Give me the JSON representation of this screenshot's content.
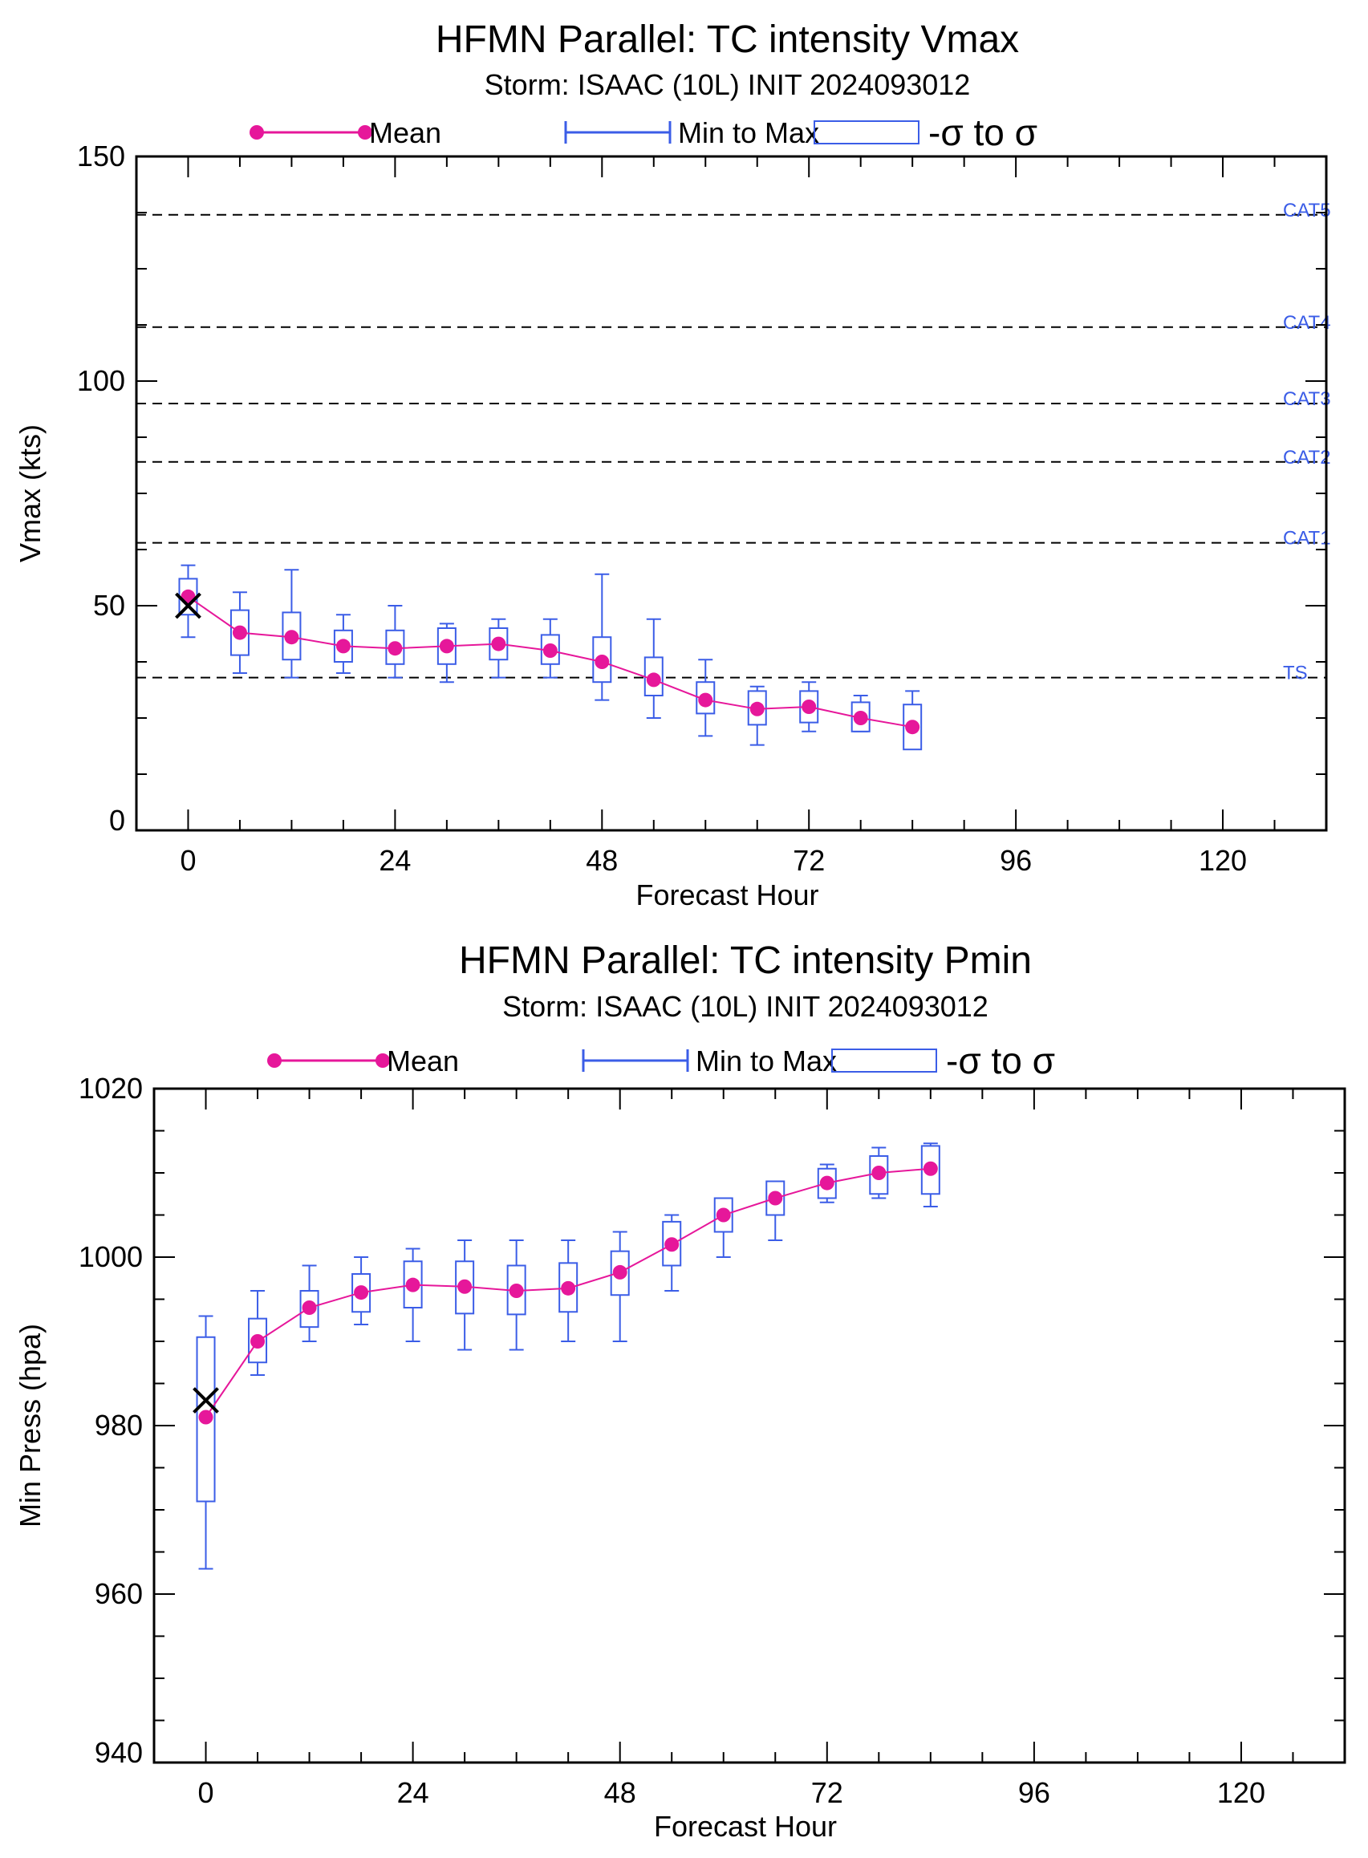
{
  "chart_data": [
    {
      "type": "box",
      "title": "HFMN Parallel: TC intensity Vmax",
      "subtitle": "Storm: ISAAC (10L) INIT 2024093012",
      "xlabel": "Forecast Hour",
      "ylabel": "Vmax (kts)",
      "xlim": [
        -6,
        132
      ],
      "ylim": [
        0,
        150
      ],
      "xticks": [
        0,
        24,
        48,
        72,
        96,
        120
      ],
      "yticks": [
        0,
        50,
        100,
        150
      ],
      "legend": {
        "position": "top",
        "mean": "Mean",
        "range": "Min to Max",
        "box": "-σ to σ"
      },
      "colors": {
        "mean": "#e6179a",
        "box": "#3b5de7",
        "threshold": "#000000",
        "threshold_label": "#3b5de7",
        "observed": "#000000"
      },
      "thresholds": [
        {
          "label": "TS",
          "value": 34
        },
        {
          "label": "CAT1",
          "value": 64
        },
        {
          "label": "CAT2",
          "value": 82
        },
        {
          "label": "CAT3",
          "value": 95
        },
        {
          "label": "CAT4",
          "value": 112
        },
        {
          "label": "CAT5",
          "value": 137
        }
      ],
      "observed": {
        "x": 0,
        "y": 50
      },
      "series": [
        {
          "name": "Mean",
          "x": [
            0,
            6,
            12,
            18,
            24,
            30,
            36,
            42,
            48,
            54,
            60,
            66,
            72,
            78,
            84
          ],
          "mean": [
            52,
            44,
            43,
            41,
            40.5,
            41,
            41.5,
            40,
            37.5,
            33.5,
            29,
            27,
            27.5,
            25,
            23
          ],
          "min": [
            43,
            35,
            34,
            35,
            34,
            33,
            34,
            34,
            29,
            25,
            21,
            19,
            22,
            22,
            19
          ],
          "max": [
            59,
            53,
            58,
            48,
            50,
            46,
            47,
            47,
            57,
            47,
            38,
            32,
            33,
            30,
            31
          ],
          "lo": [
            48,
            39,
            38,
            37.5,
            37,
            37,
            38,
            37,
            33,
            30,
            26,
            23.5,
            24,
            22,
            18
          ],
          "hi": [
            56,
            49,
            48.5,
            44.5,
            44.5,
            45,
            45,
            43.5,
            43,
            38.5,
            33,
            31,
            31,
            28.5,
            28
          ]
        }
      ]
    },
    {
      "type": "box",
      "title": "HFMN Parallel: TC intensity Pmin",
      "subtitle": "Storm: ISAAC (10L) INIT 2024093012",
      "xlabel": "Forecast Hour",
      "ylabel": "Min Press (hpa)",
      "xlim": [
        -6,
        132
      ],
      "ylim": [
        940,
        1020
      ],
      "xticks": [
        0,
        24,
        48,
        72,
        96,
        120
      ],
      "yticks": [
        940,
        960,
        980,
        1000,
        1020
      ],
      "legend": {
        "position": "top",
        "mean": "Mean",
        "range": "Min to Max",
        "box": "-σ to σ"
      },
      "colors": {
        "mean": "#e6179a",
        "box": "#3b5de7",
        "observed": "#000000"
      },
      "thresholds": [],
      "observed": {
        "x": 0,
        "y": 983
      },
      "series": [
        {
          "name": "Mean",
          "x": [
            0,
            6,
            12,
            18,
            24,
            30,
            36,
            42,
            48,
            54,
            60,
            66,
            72,
            78,
            84
          ],
          "mean": [
            981,
            990,
            994,
            995.8,
            996.7,
            996.5,
            996,
            996.3,
            998.2,
            1001.5,
            1005,
            1007,
            1008.8,
            1010,
            1010.5
          ],
          "min": [
            963,
            986,
            990,
            992,
            990,
            989,
            989,
            990,
            990,
            996,
            1000,
            1002,
            1006.5,
            1007,
            1006
          ],
          "max": [
            993,
            996,
            999,
            1000,
            1001,
            1002,
            1002,
            1002,
            1003,
            1005,
            1007,
            1009,
            1011,
            1013,
            1013.5
          ],
          "lo": [
            971,
            987.5,
            991.7,
            993.5,
            994,
            993.3,
            993.2,
            993.5,
            995.5,
            999,
            1003,
            1005,
            1007,
            1007.5,
            1007.5
          ],
          "hi": [
            990.5,
            992.7,
            996,
            998,
            999.5,
            999.5,
            999,
            999.3,
            1000.7,
            1004.2,
            1007,
            1009,
            1010.5,
            1012,
            1013.2
          ]
        }
      ]
    }
  ]
}
